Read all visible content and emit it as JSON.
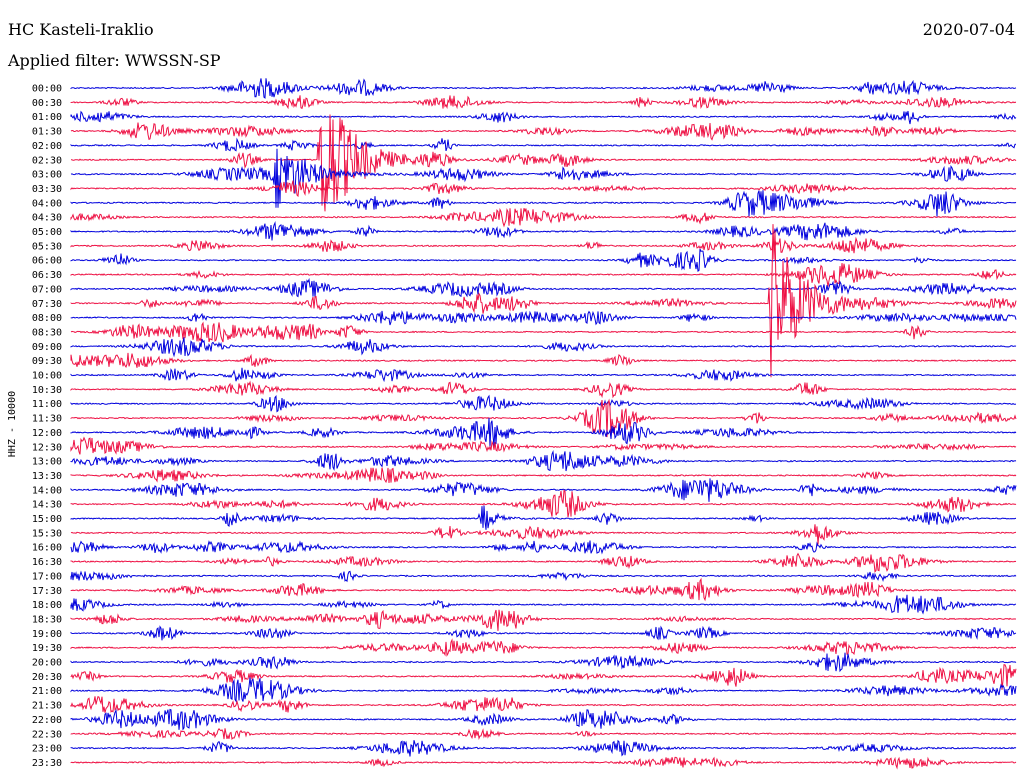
{
  "header": {
    "station": "HC Kasteli-Iraklio",
    "filter": "Applied filter: WWSSN-SP",
    "date": "2020-07-04"
  },
  "chart_data": {
    "type": "line",
    "title": "HC Kasteli-Iraklio",
    "subtitle": "Applied filter: WWSSN-SP",
    "ylabel": "HHZ - 10000",
    "trace_colors": [
      "#0000dd",
      "#ee1144"
    ],
    "rows": [
      "00:00",
      "00:30",
      "01:00",
      "01:30",
      "02:00",
      "02:30",
      "03:00",
      "03:30",
      "04:00",
      "04:30",
      "05:00",
      "05:30",
      "06:00",
      "06:30",
      "07:00",
      "07:30",
      "08:00",
      "08:30",
      "09:00",
      "09:30",
      "10:00",
      "10:30",
      "11:00",
      "11:30",
      "12:00",
      "12:30",
      "13:00",
      "13:30",
      "14:00",
      "14:30",
      "15:00",
      "15:30",
      "16:00",
      "16:30",
      "17:00",
      "17:30",
      "18:00",
      "18:30",
      "19:00",
      "19:30",
      "20:00",
      "20:30",
      "21:00",
      "21:30",
      "22:00",
      "22:30",
      "23:00",
      "23:30"
    ],
    "row_duration_min": 30,
    "events": [
      {
        "row": "02:30",
        "minute": 7.9,
        "amplitude": "clipped",
        "color": "red"
      },
      {
        "row": "03:00",
        "minute": 6.5,
        "amplitude": "large",
        "color": "blue"
      },
      {
        "row": "07:30",
        "minute": 22.2,
        "amplitude": "clipped",
        "color": "red"
      },
      {
        "row": "15:00",
        "minute": 13.0,
        "amplitude": "medium",
        "color": "blue"
      }
    ]
  }
}
